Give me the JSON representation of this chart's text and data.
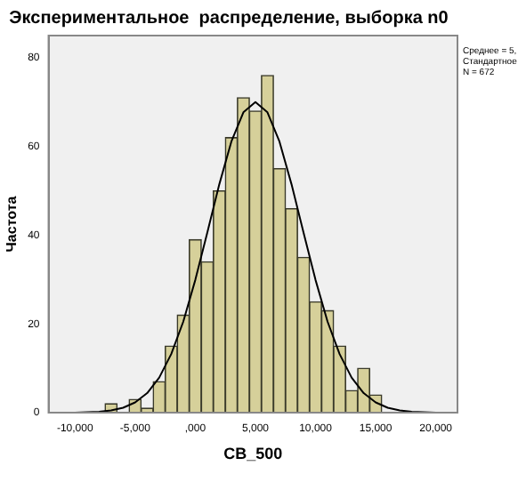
{
  "chart_data": {
    "type": "histogram",
    "title": "Экспериментальное  распределение, выборка n0",
    "xlabel": "CB_500",
    "ylabel": "Частота",
    "bins": [
      -7500,
      -6500,
      -5500,
      -4500,
      -3500,
      -2500,
      -1500,
      -500,
      500,
      1500,
      2500,
      3500,
      4500,
      5500,
      6500,
      7500,
      8500,
      9500,
      10500,
      11500,
      12500,
      13500,
      14500,
      15500
    ],
    "values": [
      2,
      0,
      3,
      1,
      7,
      15,
      22,
      39,
      34,
      50,
      62,
      71,
      68,
      76,
      55,
      46,
      35,
      25,
      23,
      15,
      5,
      10,
      4
    ],
    "color": "#d6d09a",
    "series": [
      {
        "type": "line",
        "color": "#000000",
        "x": [
          -10000,
          -9000,
          -8000,
          -7000,
          -6000,
          -5000,
          -4000,
          -3000,
          -2000,
          -1000,
          0,
          1000,
          2000,
          3000,
          4000,
          5000,
          6000,
          7000,
          8000,
          9000,
          10000,
          11000,
          12000,
          13000,
          14000,
          15000,
          16000,
          17000,
          18000,
          19000,
          20000
        ],
        "values": [
          0,
          0.1,
          0.2,
          0.5,
          1.1,
          2.3,
          4.4,
          7.9,
          13.2,
          20.5,
          29.9,
          40.6,
          51.5,
          61.1,
          67.7,
          70,
          67.7,
          61.1,
          51.5,
          40.6,
          29.9,
          20.5,
          13.2,
          7.9,
          4.4,
          2.3,
          1.1,
          0.5,
          0.2,
          0.1,
          0
        ]
      }
    ],
    "xlim": [
      -12200,
      21800
    ],
    "ylim": [
      0,
      85
    ],
    "xticks": [
      {
        "value": -10000,
        "label": "-10,000"
      },
      {
        "value": -5000,
        "label": "-5,000"
      },
      {
        "value": 0,
        "label": ",000"
      },
      {
        "value": 5000,
        "label": "5,000"
      },
      {
        "value": 10000,
        "label": "10,000"
      },
      {
        "value": 15000,
        "label": "15,000"
      },
      {
        "value": 20000,
        "label": "20,000"
      }
    ],
    "yticks": [
      0,
      20,
      40,
      60,
      80
    ],
    "annotations": [
      "Среднее = 5,",
      "Стандартное",
      "N = 672"
    ],
    "grid": false,
    "legend": false
  }
}
